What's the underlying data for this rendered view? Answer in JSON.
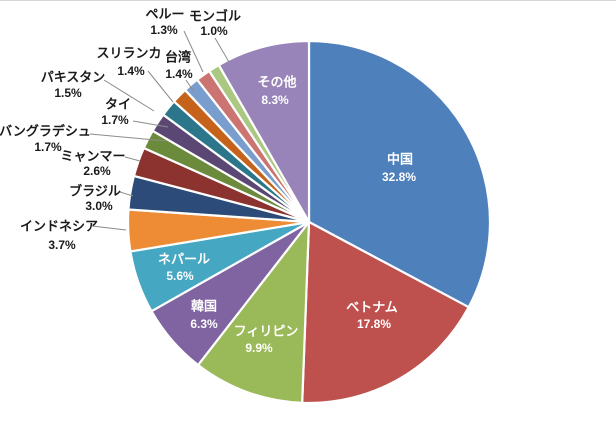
{
  "chart_data": {
    "type": "pie",
    "title": "",
    "start_angle_deg": 0,
    "direction": "clockwise",
    "slice_border_color": "#ffffff",
    "leader_line_color": "#8c8c8c",
    "inside_label_color": "#ffffff",
    "outside_label_color": "#1a1a1a",
    "slices": [
      {
        "label": "中国",
        "pct_label": "32.8%",
        "value": 32.8,
        "color": "#4E81BC",
        "label_placement": "inside"
      },
      {
        "label": "ベトナム",
        "pct_label": "17.8%",
        "value": 17.8,
        "color": "#BE504D",
        "label_placement": "inside"
      },
      {
        "label": "フィリピン",
        "pct_label": "9.9%",
        "value": 9.9,
        "color": "#9AB958",
        "label_placement": "inside"
      },
      {
        "label": "韓国",
        "pct_label": "6.3%",
        "value": 6.3,
        "color": "#8064A2",
        "label_placement": "inside"
      },
      {
        "label": "ネパール",
        "pct_label": "5.6%",
        "value": 5.6,
        "color": "#45A7C1",
        "label_placement": "inside"
      },
      {
        "label": "インドネシア",
        "pct_label": "3.7%",
        "value": 3.7,
        "color": "#EE8C35",
        "label_placement": "outside"
      },
      {
        "label": "ブラジル",
        "pct_label": "3.0%",
        "value": 3.0,
        "color": "#2D4B78",
        "label_placement": "outside"
      },
      {
        "label": "ミャンマー",
        "pct_label": "2.6%",
        "value": 2.6,
        "color": "#8C332F",
        "label_placement": "outside"
      },
      {
        "label": "バングラデシュ",
        "pct_label": "1.7%",
        "value": 1.7,
        "color": "#6C8A3C",
        "label_placement": "outside"
      },
      {
        "label": "タイ",
        "pct_label": "1.7%",
        "value": 1.7,
        "color": "#5A4773",
        "label_placement": "outside"
      },
      {
        "label": "パキスタン",
        "pct_label": "1.5%",
        "value": 1.5,
        "color": "#2B768A",
        "label_placement": "outside"
      },
      {
        "label": "スリランカ",
        "pct_label": "1.4%",
        "value": 1.4,
        "color": "#C5631C",
        "label_placement": "outside"
      },
      {
        "label": "台湾",
        "pct_label": "1.4%",
        "value": 1.4,
        "color": "#799ECE",
        "label_placement": "outside"
      },
      {
        "label": "ペルー",
        "pct_label": "1.3%",
        "value": 1.3,
        "color": "#CB7471",
        "label_placement": "outside"
      },
      {
        "label": "モンゴル",
        "pct_label": "1.0%",
        "value": 1.0,
        "color": "#ABC882",
        "label_placement": "outside"
      },
      {
        "label": "その他",
        "pct_label": "8.3%",
        "value": 8.3,
        "color": "#9884B8",
        "label_placement": "inside"
      }
    ]
  }
}
